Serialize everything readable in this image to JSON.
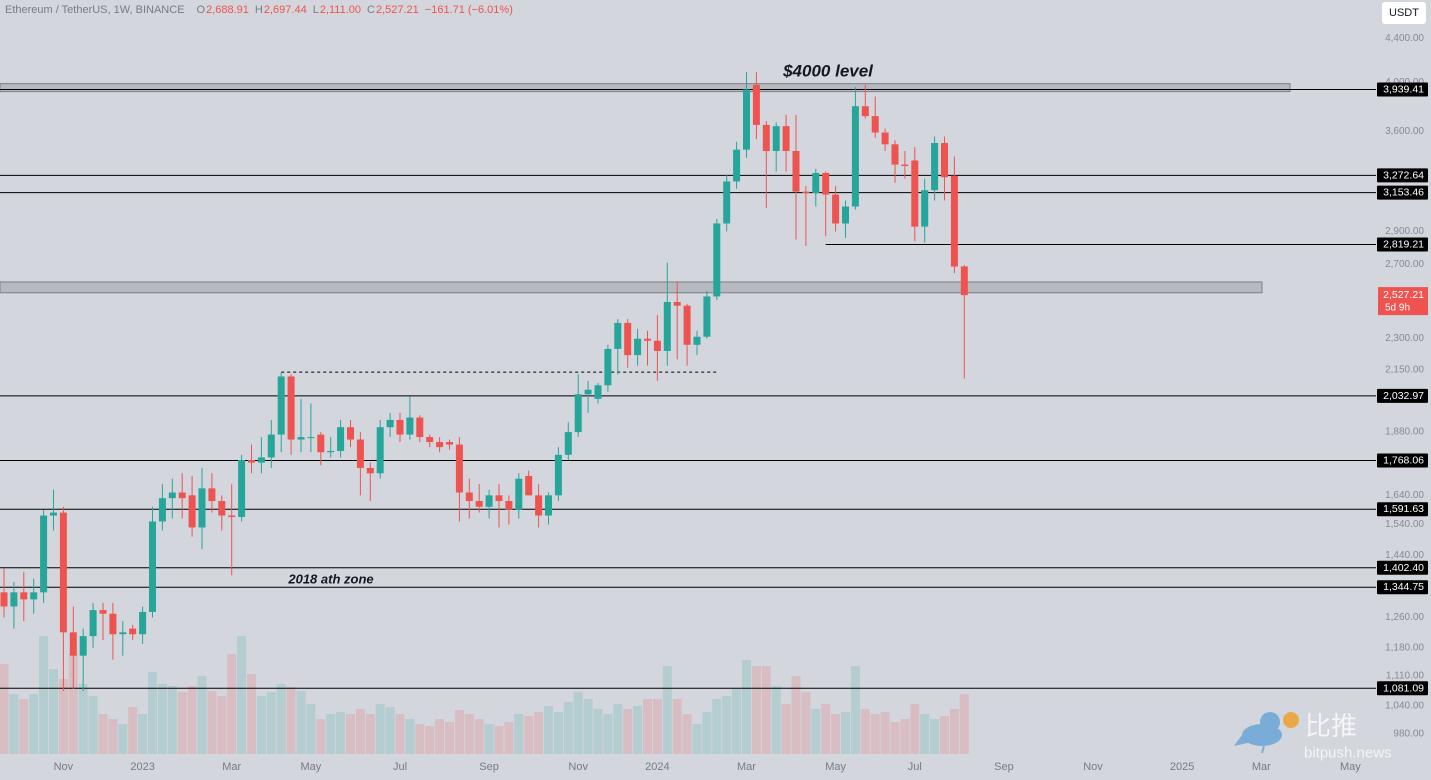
{
  "chart_data": {
    "type": "candlestick",
    "title": "Ethereum / TetherUS, 1W, BINANCE",
    "ohlc_stats": [
      {
        "key": "O",
        "value": "2,688.91"
      },
      {
        "key": "H",
        "value": "2,697.44"
      },
      {
        "key": "L",
        "value": "2,111.00"
      },
      {
        "key": "C",
        "value": "2,527.21"
      }
    ],
    "change": "−161.71 (−6.01%)",
    "currency": "USDT",
    "log": true,
    "grid": false,
    "up_color": "#26a69a",
    "down_color": "#ef5350",
    "ylim": [
      930,
      4780
    ],
    "yticks": [
      {
        "value": 4400,
        "label": "4,400.00"
      },
      {
        "value": 4000,
        "label": "4,000.00"
      },
      {
        "value": 3600,
        "label": "3,600.00"
      },
      {
        "value": 2900,
        "label": "2,900.00"
      },
      {
        "value": 2700,
        "label": "2,700.00"
      },
      {
        "value": 2300,
        "label": "2,300.00"
      },
      {
        "value": 2150,
        "label": "2,150.00"
      },
      {
        "value": 1880,
        "label": "1,880.00"
      },
      {
        "value": 1640,
        "label": "1,640.00"
      },
      {
        "value": 1540,
        "label": "1,540.00"
      },
      {
        "value": 1440,
        "label": "1,440.00"
      },
      {
        "value": 1260,
        "label": "1,260.00"
      },
      {
        "value": 1180,
        "label": "1,180.00"
      },
      {
        "value": 1110,
        "label": "1,110.00"
      },
      {
        "value": 1040,
        "label": "1,040.00"
      },
      {
        "value": 980,
        "label": "980.00"
      }
    ],
    "categories": [
      null,
      null,
      null,
      null,
      null,
      null,
      "Nov",
      null,
      null,
      null,
      null,
      null,
      null,
      null,
      "2023",
      null,
      null,
      null,
      null,
      null,
      null,
      null,
      null,
      "Mar",
      null,
      null,
      null,
      null,
      null,
      null,
      null,
      "May",
      null,
      null,
      null,
      null,
      null,
      null,
      null,
      null,
      "Jul",
      null,
      null,
      null,
      null,
      null,
      null,
      null,
      null,
      "Sep",
      null,
      null,
      null,
      null,
      null,
      null,
      null,
      null,
      "Nov",
      null,
      null,
      null,
      null,
      null,
      null,
      null,
      "2024",
      null,
      null,
      null,
      null,
      null,
      null,
      null,
      null,
      "Mar",
      null,
      null,
      null,
      null,
      null,
      null,
      null,
      null,
      "May",
      null,
      null,
      null,
      null,
      null,
      null,
      null,
      "Jul",
      null,
      null,
      null,
      null,
      null,
      null,
      null,
      null,
      "Sep",
      null,
      null,
      null,
      null,
      null,
      null,
      null,
      null,
      "Nov",
      null,
      null,
      null,
      null,
      null,
      null,
      null,
      null,
      "2025",
      null,
      null,
      null,
      null,
      null,
      null,
      null,
      "Mar",
      null,
      null,
      null,
      null,
      null,
      null,
      null,
      null,
      "May"
    ],
    "open": [
      1330,
      1290,
      1330,
      1310,
      1330,
      1570,
      1580,
      1220,
      1160,
      1210,
      1280,
      1270,
      1215,
      1230,
      1215,
      1275,
      1550,
      1630,
      1650,
      1640,
      1530,
      1665,
      1620,
      1570,
      1565,
      1770,
      1760,
      1780,
      1870,
      2120,
      1850,
      1860,
      1870,
      1800,
      1805,
      1900,
      1850,
      1740,
      1720,
      1900,
      1930,
      1870,
      1940,
      1860,
      1840,
      1840,
      1830,
      1650,
      1620,
      1600,
      1640,
      1620,
      1590,
      1710,
      1640,
      1570,
      1640,
      1790,
      1880,
      2040,
      2020,
      2080,
      2250,
      2380,
      2220,
      2300,
      2290,
      2240,
      2490,
      2470,
      2270,
      2310,
      2520,
      2950,
      3230,
      3460,
      3980,
      3650,
      3450,
      3640,
      3450,
      3160,
      3150,
      3290,
      3140,
      2950,
      3060,
      3800,
      3720,
      3590,
      3500,
      3350,
      3380,
      2930,
      3170,
      3510,
      3270,
      2688.91,
      null,
      null,
      null,
      null,
      null,
      null,
      null,
      null,
      null,
      null,
      null,
      null,
      null,
      null,
      null,
      null,
      null,
      null,
      null,
      null,
      null,
      null,
      null,
      null,
      null,
      null,
      null,
      null,
      null,
      null,
      null,
      null,
      null,
      null,
      null,
      null,
      null,
      null,
      null
    ],
    "high": [
      1400,
      1360,
      1390,
      1370,
      1590,
      1660,
      1600,
      1290,
      1230,
      1300,
      1300,
      1300,
      1250,
      1240,
      1290,
      1600,
      1680,
      1700,
      1720,
      1710,
      1740,
      1720,
      1640,
      1680,
      1790,
      1830,
      1860,
      1930,
      2140,
      2130,
      2020,
      2000,
      1880,
      1860,
      1930,
      1930,
      1880,
      1760,
      1930,
      1960,
      1960,
      2030,
      1950,
      1870,
      1860,
      1850,
      1860,
      1700,
      1680,
      1660,
      1680,
      1640,
      1720,
      1730,
      1680,
      1650,
      1820,
      1920,
      2130,
      2100,
      2090,
      2270,
      2400,
      2400,
      2350,
      2340,
      2420,
      2710,
      2600,
      2480,
      2340,
      2550,
      2980,
      3280,
      3520,
      4090,
      4090,
      3680,
      3670,
      3730,
      3730,
      3200,
      3320,
      3300,
      3200,
      3100,
      3960,
      3980,
      3880,
      3620,
      3530,
      3450,
      3480,
      3250,
      3560,
      3560,
      3410,
      2697.44,
      null,
      null,
      null,
      null,
      null,
      null,
      null,
      null,
      null,
      null,
      null,
      null,
      null,
      null,
      null,
      null,
      null,
      null,
      null,
      null,
      null,
      null,
      null,
      null,
      null,
      null,
      null,
      null,
      null,
      null,
      null,
      null,
      null,
      null,
      null,
      null,
      null,
      null,
      null
    ],
    "low": [
      1260,
      1230,
      1250,
      1270,
      1300,
      1520,
      1075,
      1080,
      1075,
      1180,
      1200,
      1150,
      1160,
      1200,
      1190,
      1260,
      1520,
      1560,
      1560,
      1500,
      1460,
      1580,
      1520,
      1380,
      1550,
      1720,
      1720,
      1740,
      1800,
      1790,
      1800,
      1800,
      1750,
      1780,
      1780,
      1820,
      1640,
      1620,
      1700,
      1860,
      1840,
      1850,
      1840,
      1820,
      1800,
      1810,
      1550,
      1560,
      1580,
      1560,
      1530,
      1540,
      1560,
      1640,
      1530,
      1540,
      1620,
      1770,
      1860,
      1960,
      2000,
      2050,
      2130,
      2160,
      2170,
      2170,
      2100,
      2170,
      2200,
      2170,
      2220,
      2300,
      2500,
      2900,
      3180,
      3400,
      3540,
      3050,
      3300,
      3300,
      2850,
      2810,
      3060,
      2870,
      2900,
      2860,
      3040,
      3700,
      3550,
      3450,
      3220,
      3250,
      2840,
      2830,
      3100,
      3100,
      2650,
      2111,
      null,
      null,
      null,
      null,
      null,
      null,
      null,
      null,
      null,
      null,
      null,
      null,
      null,
      null,
      null,
      null,
      null,
      null,
      null,
      null,
      null,
      null,
      null,
      null,
      null,
      null,
      null,
      null,
      null,
      null,
      null,
      null,
      null,
      null,
      null,
      null,
      null,
      null,
      null
    ],
    "close": [
      1290,
      1330,
      1310,
      1330,
      1570,
      1580,
      1220,
      1160,
      1210,
      1280,
      1270,
      1215,
      1220,
      1215,
      1275,
      1550,
      1630,
      1650,
      1630,
      1530,
      1665,
      1620,
      1570,
      1565,
      1770,
      1760,
      1780,
      1870,
      2120,
      1850,
      1860,
      1860,
      1800,
      1805,
      1900,
      1850,
      1740,
      1720,
      1900,
      1930,
      1870,
      1940,
      1860,
      1840,
      1820,
      1830,
      1650,
      1620,
      1600,
      1640,
      1620,
      1590,
      1700,
      1640,
      1570,
      1640,
      1790,
      1880,
      2040,
      2060,
      2080,
      2250,
      2380,
      2220,
      2300,
      2290,
      2240,
      2490,
      2470,
      2270,
      2310,
      2520,
      2950,
      3230,
      3460,
      3940,
      3650,
      3450,
      3640,
      3450,
      3160,
      3150,
      3290,
      3140,
      2950,
      3060,
      3800,
      3720,
      3590,
      3500,
      3350,
      3340,
      2930,
      3170,
      3510,
      3260,
      2688,
      2527.21,
      null,
      null,
      null,
      null,
      null,
      null,
      null,
      null,
      null,
      null,
      null,
      null,
      null,
      null,
      null,
      null,
      null,
      null,
      null,
      null,
      null,
      null,
      null,
      null,
      null,
      null,
      null,
      null,
      null,
      null,
      null,
      null,
      null,
      null,
      null,
      null,
      null,
      null,
      null
    ],
    "volume": [
      90,
      60,
      55,
      60,
      118,
      85,
      75,
      100,
      70,
      58,
      40,
      35,
      30,
      47,
      40,
      82,
      70,
      68,
      62,
      68,
      78,
      63,
      58,
      100,
      118,
      80,
      58,
      62,
      70,
      67,
      63,
      50,
      35,
      40,
      42,
      40,
      45,
      40,
      50,
      47,
      40,
      35,
      30,
      28,
      35,
      32,
      44,
      40,
      35,
      30,
      28,
      32,
      40,
      38,
      42,
      48,
      42,
      52,
      62,
      55,
      45,
      40,
      50,
      45,
      48,
      55,
      55,
      88,
      55,
      40,
      30,
      42,
      55,
      58,
      65,
      94,
      88,
      88,
      68,
      50,
      78,
      62,
      45,
      50,
      40,
      42,
      88,
      45,
      40,
      42,
      32,
      35,
      50,
      40,
      35,
      38,
      45,
      60,
      null,
      null,
      null,
      null,
      null,
      null,
      null,
      null,
      null,
      null,
      null,
      null,
      null,
      null,
      null,
      null,
      null,
      null,
      null,
      null,
      null,
      null,
      null,
      null,
      null,
      null,
      null,
      null,
      null,
      null,
      null,
      null,
      null,
      null,
      null,
      null,
      null,
      null,
      null
    ],
    "zones": [
      {
        "low": 3922,
        "high": 3990
      },
      {
        "low": 2540,
        "high": 2600
      }
    ],
    "levels": [
      {
        "value": 3939.41,
        "label": "3,939.41"
      },
      {
        "value": 3272.64,
        "label": "3,272.64"
      },
      {
        "value": 3153.46,
        "label": "3,153.46"
      },
      {
        "value": 2819.21,
        "label": "2,819.21"
      },
      {
        "value": 2032.97,
        "label": "2,032.97"
      },
      {
        "value": 1768.06,
        "label": "1,768.06"
      },
      {
        "value": 1591.63,
        "label": "1,591.63"
      },
      {
        "value": 1402.4,
        "label": "1,402.40"
      },
      {
        "value": 1344.75,
        "label": "1,344.75"
      },
      {
        "value": 1081.09,
        "label": "1,081.09"
      }
    ],
    "dashed_level": 2140,
    "current_price": {
      "value": 2527.21,
      "label": "2,527.21",
      "countdown": "5d 9h"
    },
    "annotations": [
      "$4000 level",
      "2018 ath zone"
    ],
    "watermark": {
      "logo_text": "比推",
      "site": "bitpush.news"
    }
  }
}
